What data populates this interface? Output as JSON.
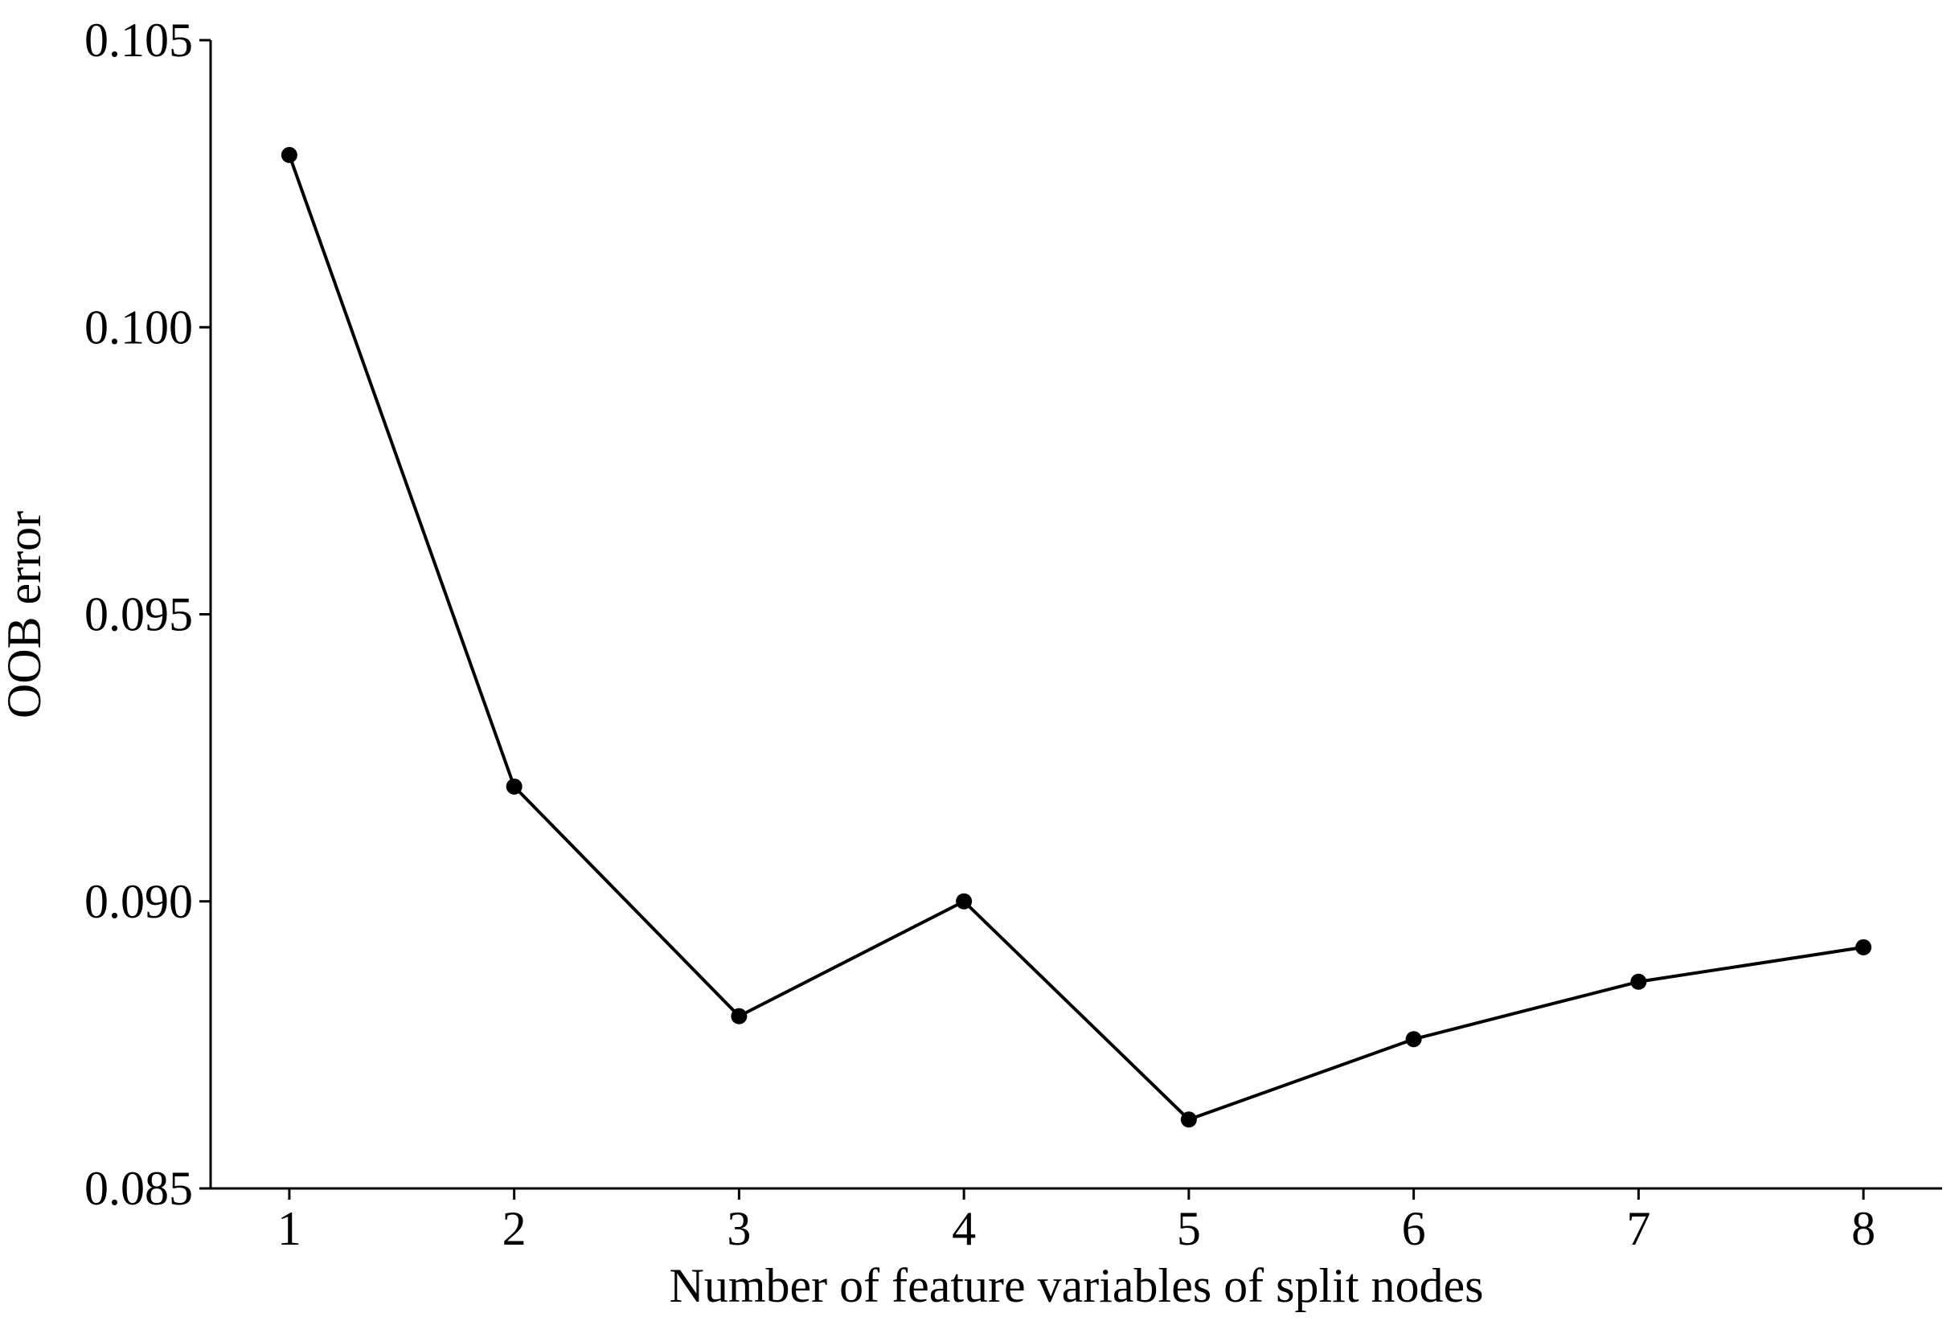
{
  "chart_data": {
    "type": "line",
    "x": [
      1,
      2,
      3,
      4,
      5,
      6,
      7,
      8
    ],
    "series": [
      {
        "name": "",
        "values": [
          0.103,
          0.092,
          0.088,
          0.09,
          0.0862,
          0.0876,
          0.0886,
          0.0892
        ]
      }
    ],
    "x_ticks": [
      "1",
      "2",
      "3",
      "4",
      "5",
      "6",
      "7",
      "8"
    ],
    "y_ticks": [
      "0.085",
      "0.090",
      "0.095",
      "0.100",
      "0.105"
    ],
    "xlabel": "Number of feature variables of split nodes",
    "ylabel": "OOB error",
    "xlim": [
      0.65,
      8.35
    ],
    "ylim": [
      0.085,
      0.105
    ],
    "grid": false,
    "legend": "none",
    "line_color": "#000000",
    "marker": "circle"
  }
}
